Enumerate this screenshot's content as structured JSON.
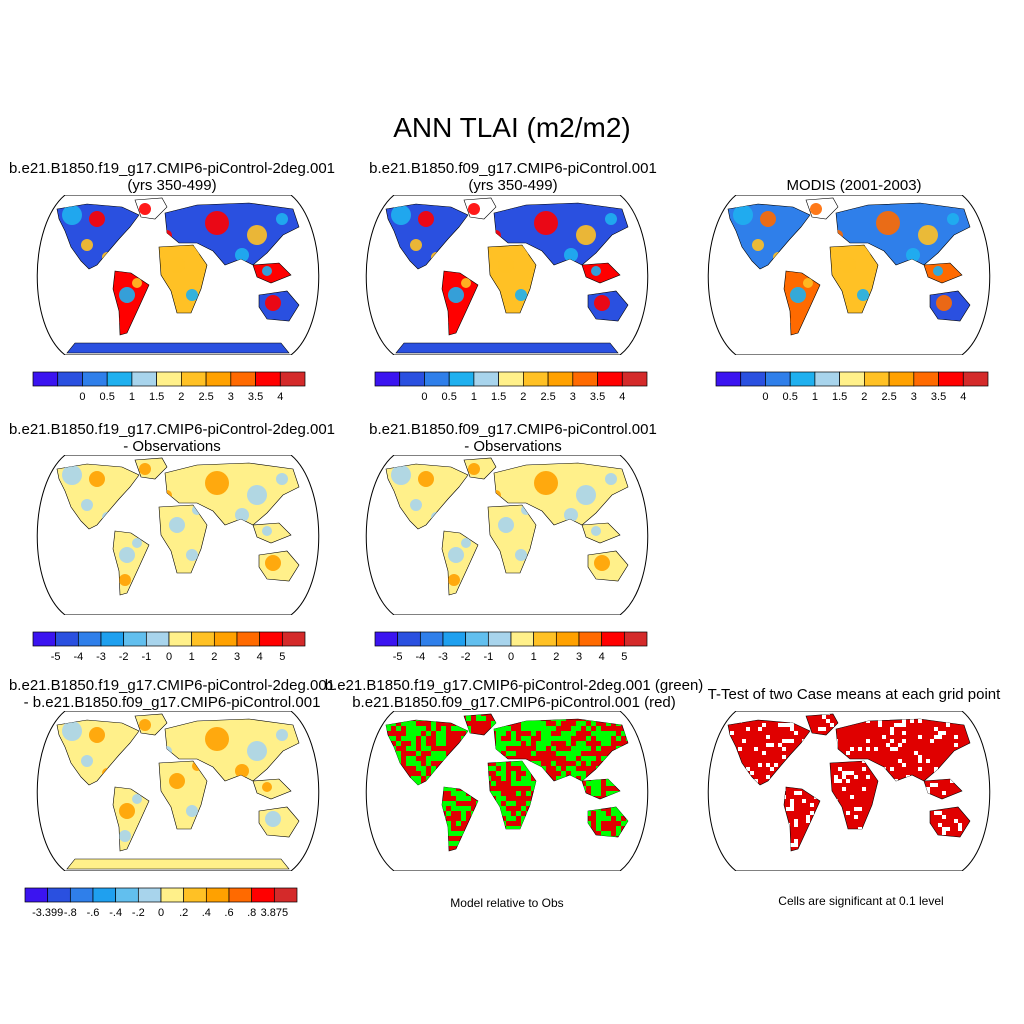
{
  "title": "ANN TLAI (m2/m2)",
  "panels": {
    "p1": {
      "line1": "b.e21.B1850.f19_g17.CMIP6-piControl-2deg.001",
      "line2": "(yrs 350-499)"
    },
    "p2": {
      "line1": "b.e21.B1850.f09_g17.CMIP6-piControl.001",
      "line2": "(yrs 350-499)"
    },
    "p3": {
      "line1": "MODIS (2001-2003)"
    },
    "p4": {
      "line1": "b.e21.B1850.f19_g17.CMIP6-piControl-2deg.001",
      "line2": "- Observations"
    },
    "p5": {
      "line1": "b.e21.B1850.f09_g17.CMIP6-piControl.001",
      "line2": "- Observations"
    },
    "p7": {
      "line1": "b.e21.B1850.f19_g17.CMIP6-piControl-2deg.001",
      "line2": "- b.e21.B1850.f09_g17.CMIP6-piControl.001"
    },
    "p8": {
      "line1": "b.e21.B1850.f19_g17.CMIP6-piControl-2deg.001 (green)",
      "line2": "b.e21.B1850.f09_g17.CMIP6-piControl.001 (red)",
      "footer": "Model relative to Obs"
    },
    "p9": {
      "line1": "T-Test of two Case means at each grid point",
      "footer": "Cells are significant at 0.1 level"
    }
  },
  "colorbars": {
    "abs": {
      "colors": [
        "#3b14f0",
        "#2a50e0",
        "#2f7fea",
        "#1fb0ef",
        "#a8d4ec",
        "#fff08a",
        "#ffc125",
        "#ffa100",
        "#ff6a00",
        "#ff0000",
        "#d42a2a"
      ],
      "labels": [
        "0",
        "0.5",
        "1",
        "1.5",
        "2",
        "2.5",
        "3",
        "3.5",
        "4"
      ]
    },
    "diff": {
      "colors": [
        "#3b14f0",
        "#2a50e0",
        "#2f7fea",
        "#1fa0ef",
        "#62bfee",
        "#a8d4ec",
        "#fff08a",
        "#ffc125",
        "#ffa100",
        "#ff6a00",
        "#ff0000",
        "#d42a2a"
      ],
      "labels": [
        "-5",
        "-4",
        "-3",
        "-2",
        "-1",
        "0",
        "1",
        "2",
        "3",
        "4",
        "5"
      ]
    },
    "case": {
      "colors": [
        "#3b14f0",
        "#2a50e0",
        "#2f7fea",
        "#1fa0ef",
        "#62bfee",
        "#a8d4ec",
        "#fff08a",
        "#ffc125",
        "#ffa100",
        "#ff6a00",
        "#ff0000",
        "#d42a2a"
      ],
      "labels": [
        "-3.399",
        "-.8",
        "-.6",
        "-.4",
        "-.2",
        "0",
        ".2",
        ".4",
        ".6",
        ".8",
        "3.875"
      ]
    }
  },
  "fills": {
    "ocean": "#ffffff",
    "coast": "#000000",
    "model_abs": {
      "north": "#2a50e0",
      "boreal": "#1fb0ef",
      "tropics": "#ff0000",
      "savanna": "#ffc125",
      "desert": "#2a50e0",
      "antarctica": "#2a50e0"
    },
    "obs_abs": {
      "north": "#2f7fea",
      "boreal": "#1fb0ef",
      "tropics": "#ff6a00",
      "savanna": "#ffc125",
      "desert": "#2a50e0"
    },
    "diff": {
      "base": "#fff08a",
      "cool": "#a8d4ec",
      "warm": "#ffa100"
    },
    "case_diff": {
      "base": "#fff08a",
      "cool": "#a8d4ec",
      "warm": "#ffa100",
      "antarctica": "#fff08a"
    },
    "sig_green": "#00ff00",
    "sig_red": "#e00000"
  }
}
